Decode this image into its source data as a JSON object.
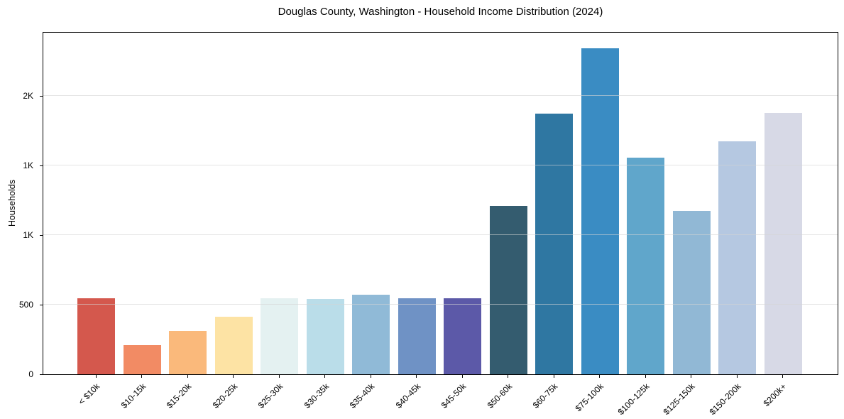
{
  "chart": {
    "title": "Douglas County, Washington - Household Income Distribution (2024)",
    "ylabel": "Households"
  },
  "chart_data": {
    "type": "bar",
    "title": "Douglas County, Washington - Household Income Distribution (2024)",
    "xlabel": "",
    "ylabel": "Households",
    "categories": [
      "< $10k",
      "$10-15k",
      "$15-20k",
      "$20-25k",
      "$25-30k",
      "$30-35k",
      "$35-40k",
      "$40-45k",
      "$45-50k",
      "$50-60k",
      "$60-75k",
      "$75-100k",
      "$100-125k",
      "$125-150k",
      "$150-200k",
      "$200k+"
    ],
    "values": [
      545,
      210,
      310,
      415,
      545,
      540,
      570,
      545,
      545,
      1210,
      1875,
      2345,
      1555,
      1175,
      1675,
      1880
    ],
    "bar_colors": [
      "#d4584d",
      "#f28b64",
      "#fab97b",
      "#fde3a4",
      "#e4f1f1",
      "#badde9",
      "#90bad7",
      "#6f92c5",
      "#5c59a8",
      "#345c6f",
      "#2f77a2",
      "#3a8cc3",
      "#60a6cb",
      "#91b8d5",
      "#b5c8e1",
      "#d7d9e6"
    ],
    "ylim": [
      0,
      2455
    ],
    "yticks": [
      {
        "value": 0,
        "label": "0"
      },
      {
        "value": 500,
        "label": "500"
      },
      {
        "value": 1000,
        "label": "1K"
      },
      {
        "value": 1500,
        "label": "1K"
      },
      {
        "value": 2000,
        "label": "2K"
      }
    ],
    "grid": "horizontal",
    "gridline_color": "#d4d4d4",
    "legend": "none",
    "background": "#ffffff",
    "spine_color": "#000000"
  }
}
